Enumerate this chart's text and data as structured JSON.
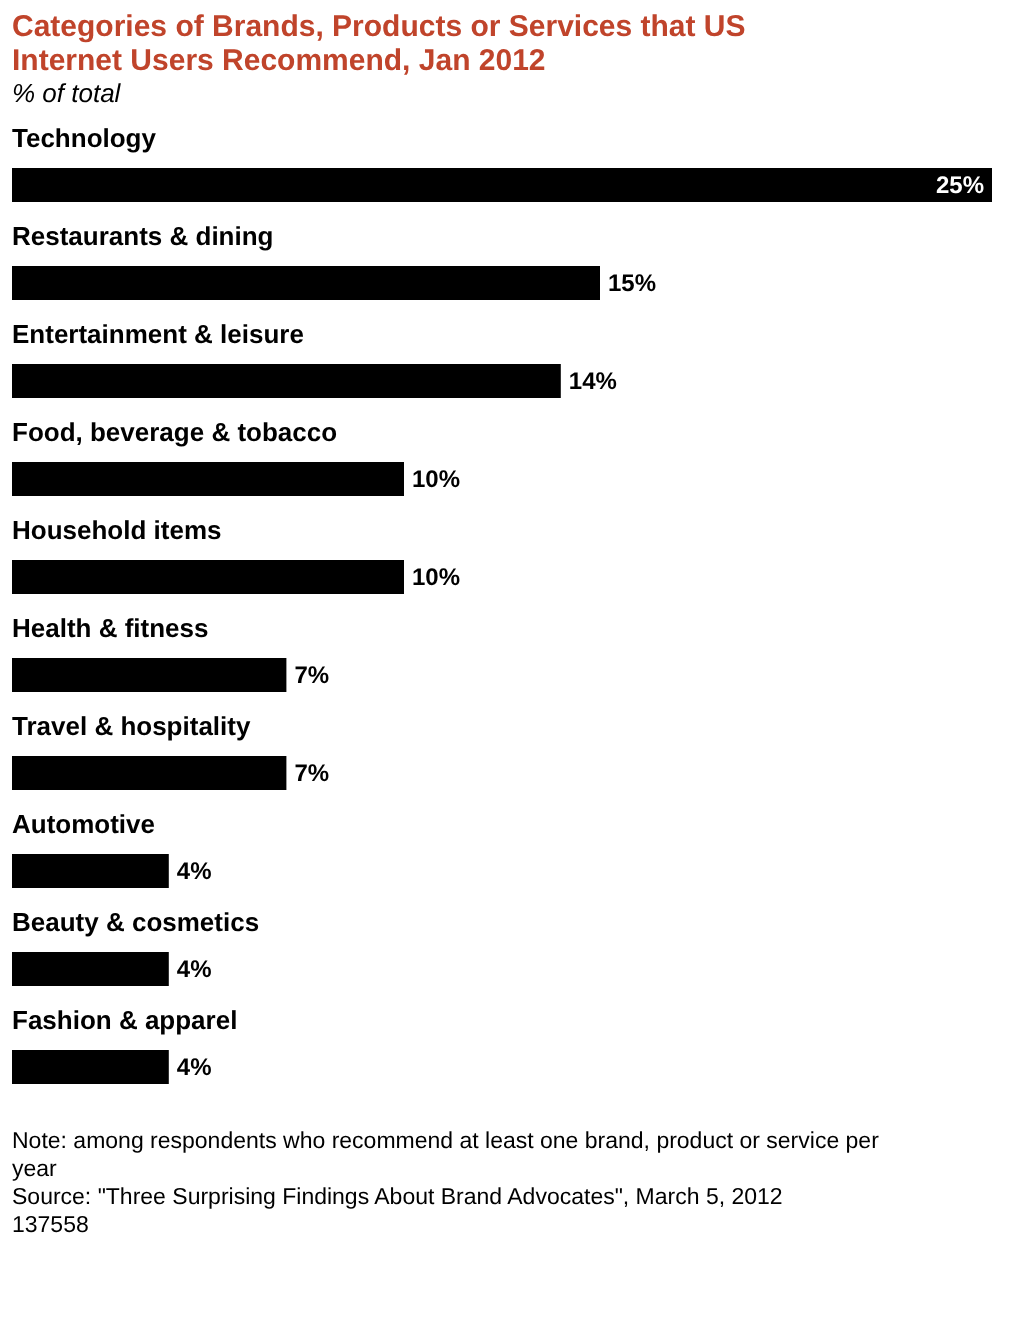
{
  "chart_data": {
    "type": "bar",
    "orientation": "horizontal",
    "title": "Categories of Brands, Products or Services that US Internet Users Recommend, Jan 2012",
    "subtitle": "% of total",
    "categories": [
      "Technology",
      "Restaurants & dining",
      "Entertainment & leisure",
      "Food, beverage & tobacco",
      "Household items",
      "Health & fitness",
      "Travel & hospitality",
      "Automotive",
      "Beauty & cosmetics",
      "Fashion & apparel"
    ],
    "values": [
      25,
      15,
      14,
      10,
      10,
      7,
      7,
      4,
      4,
      4
    ],
    "value_labels": [
      "25%",
      "15%",
      "14%",
      "10%",
      "10%",
      "7%",
      "7%",
      "4%",
      "4%",
      "4%"
    ],
    "color": "#000000",
    "annotations": [
      "Note: among respondents who recommend at least one brand, product or service per year",
      "Source: \"Three Surprising Findings About Brand Advocates\", March 5, 2012",
      "137558"
    ]
  }
}
